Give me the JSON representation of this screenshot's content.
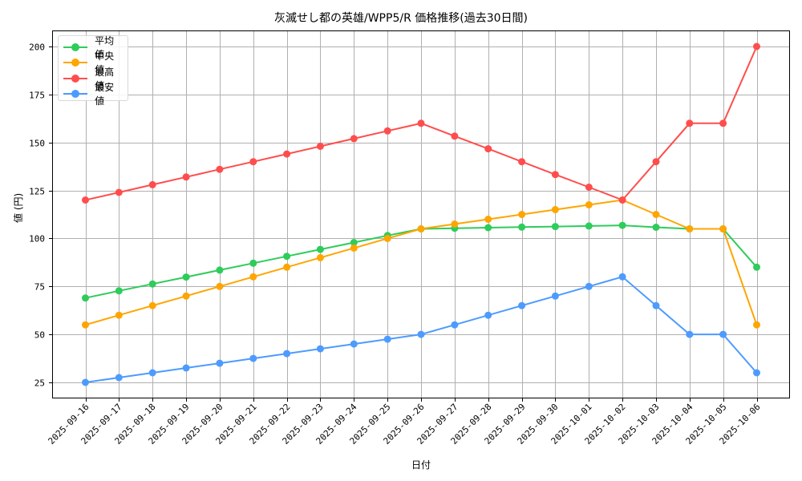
{
  "chart_data": {
    "type": "line",
    "title": "灰滅せし都の英雄/WPP5/R 価格推移(過去30日間)",
    "xlabel": "日付",
    "ylabel": "値 (円)",
    "ylim": [
      16,
      208
    ],
    "yticks": [
      25,
      50,
      75,
      100,
      125,
      150,
      175,
      200
    ],
    "grid": true,
    "legend_position": "upper left",
    "categories": [
      "2025-09-16",
      "2025-09-17",
      "2025-09-18",
      "2025-09-19",
      "2025-09-20",
      "2025-09-21",
      "2025-09-22",
      "2025-09-23",
      "2025-09-24",
      "2025-09-25",
      "2025-09-26",
      "2025-09-27",
      "2025-09-28",
      "2025-09-29",
      "2025-09-30",
      "2025-10-01",
      "2025-10-02",
      "2025-10-03",
      "2025-10-04",
      "2025-10-05",
      "2025-10-06"
    ],
    "series": [
      {
        "name": "平均値",
        "color": "#2ecc5a",
        "values": [
          69,
          72.7,
          76.3,
          79.9,
          83.5,
          87.1,
          90.7,
          94.3,
          97.9,
          101.5,
          105,
          105.3,
          105.6,
          105.9,
          106.2,
          106.5,
          106.8,
          105.8,
          105,
          105,
          85
        ]
      },
      {
        "name": "中央値",
        "color": "#ffa500",
        "values": [
          55,
          60,
          65,
          70,
          75,
          80,
          85,
          90,
          95,
          100,
          105,
          107.5,
          110,
          112.5,
          115,
          117.5,
          120,
          112.5,
          105,
          105,
          55
        ]
      },
      {
        "name": "最高値",
        "color": "#ff4d4d",
        "values": [
          120,
          124,
          128,
          132,
          136,
          140,
          144,
          148,
          152,
          156,
          160,
          153.3,
          146.7,
          140,
          133.3,
          126.7,
          120,
          140,
          160,
          160,
          200
        ]
      },
      {
        "name": "最安値",
        "color": "#4d9bff",
        "values": [
          25,
          27.5,
          30,
          32.5,
          35,
          37.5,
          40,
          42.5,
          45,
          47.5,
          50,
          55,
          60,
          65,
          70,
          75,
          80,
          65,
          50,
          50,
          30
        ]
      }
    ]
  }
}
